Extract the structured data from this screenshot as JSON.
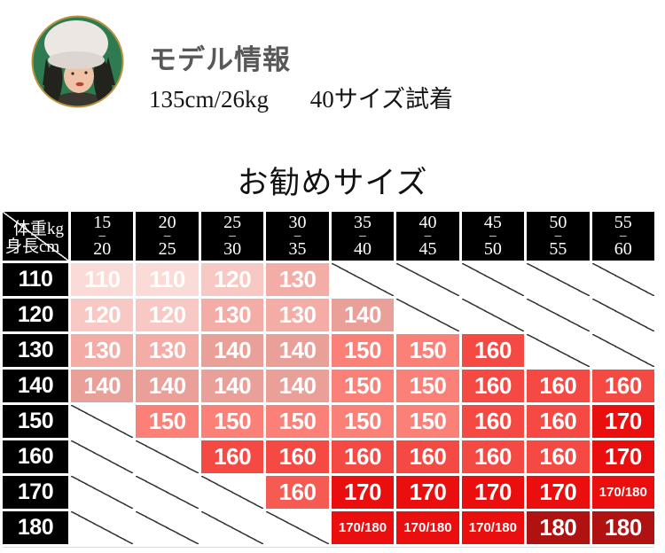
{
  "model_info": {
    "heading": "モデル情報",
    "stats": "135cm/26kg",
    "fitting": "40サイズ試着",
    "avatar_bg": "#2e7b52"
  },
  "chart_data": {
    "type": "table",
    "title": "お勧めサイズ",
    "weight_axis_label": "体重kg",
    "height_axis_label": "身長cm",
    "weight_columns": [
      {
        "from": "15",
        "to": "20"
      },
      {
        "from": "20",
        "to": "25"
      },
      {
        "from": "25",
        "to": "30"
      },
      {
        "from": "30",
        "to": "35"
      },
      {
        "from": "35",
        "to": "40"
      },
      {
        "from": "40",
        "to": "45"
      },
      {
        "from": "45",
        "to": "50"
      },
      {
        "from": "50",
        "to": "55"
      },
      {
        "from": "55",
        "to": "60"
      }
    ],
    "palette": {
      "size110": "#fbdbd7",
      "size120": "#f8c9c4",
      "size130": "#f4ada6",
      "size140": "#e9a099",
      "size150": "#fa8078",
      "size160": "#f54a43",
      "size160_alt": "#f55b53",
      "size170": "#ea0e0e",
      "size180": "#b01212",
      "header_bg": "#000000",
      "cell_text": "#ffffff",
      "empty_line": "#3b3b3b"
    },
    "rows": [
      {
        "height": "110",
        "cells": [
          {
            "label": "110",
            "color": "size110"
          },
          {
            "label": "110",
            "color": "size110"
          },
          {
            "label": "120",
            "color": "size120"
          },
          {
            "label": "130",
            "color": "size130"
          },
          null,
          null,
          null,
          null,
          null
        ]
      },
      {
        "height": "120",
        "cells": [
          {
            "label": "120",
            "color": "size120"
          },
          {
            "label": "120",
            "color": "size120"
          },
          {
            "label": "130",
            "color": "size130"
          },
          {
            "label": "130",
            "color": "size130"
          },
          {
            "label": "140",
            "color": "size140"
          },
          null,
          null,
          null,
          null
        ]
      },
      {
        "height": "130",
        "cells": [
          {
            "label": "130",
            "color": "size130"
          },
          {
            "label": "130",
            "color": "size130"
          },
          {
            "label": "140",
            "color": "size140"
          },
          {
            "label": "140",
            "color": "size140"
          },
          {
            "label": "150",
            "color": "size150"
          },
          {
            "label": "150",
            "color": "size150"
          },
          {
            "label": "160",
            "color": "size160"
          },
          null,
          null
        ]
      },
      {
        "height": "140",
        "cells": [
          {
            "label": "140",
            "color": "size140"
          },
          {
            "label": "140",
            "color": "size140"
          },
          {
            "label": "140",
            "color": "size140"
          },
          {
            "label": "140",
            "color": "size140"
          },
          {
            "label": "150",
            "color": "size150"
          },
          {
            "label": "150",
            "color": "size150"
          },
          {
            "label": "160",
            "color": "size160"
          },
          {
            "label": "160",
            "color": "size160"
          },
          {
            "label": "160",
            "color": "size160"
          }
        ]
      },
      {
        "height": "150",
        "cells": [
          null,
          {
            "label": "150",
            "color": "size150"
          },
          {
            "label": "150",
            "color": "size150"
          },
          {
            "label": "150",
            "color": "size150"
          },
          {
            "label": "150",
            "color": "size150"
          },
          {
            "label": "150",
            "color": "size150"
          },
          {
            "label": "160",
            "color": "size160"
          },
          {
            "label": "160",
            "color": "size160"
          },
          {
            "label": "170",
            "color": "size170"
          }
        ]
      },
      {
        "height": "160",
        "cells": [
          null,
          null,
          {
            "label": "160",
            "color": "size160"
          },
          {
            "label": "160",
            "color": "size160"
          },
          {
            "label": "160",
            "color": "size160"
          },
          {
            "label": "160",
            "color": "size160"
          },
          {
            "label": "160",
            "color": "size160"
          },
          {
            "label": "160",
            "color": "size160"
          },
          {
            "label": "170",
            "color": "size170"
          }
        ]
      },
      {
        "height": "170",
        "cells": [
          null,
          null,
          null,
          {
            "label": "160",
            "color": "size160_alt"
          },
          {
            "label": "170",
            "color": "size170"
          },
          {
            "label": "170",
            "color": "size170"
          },
          {
            "label": "170",
            "color": "size170"
          },
          {
            "label": "170",
            "color": "size170"
          },
          {
            "label": "170/180",
            "color": "size170"
          }
        ]
      },
      {
        "height": "180",
        "cells": [
          null,
          null,
          null,
          null,
          {
            "label": "170/180",
            "color": "size170"
          },
          {
            "label": "170/180",
            "color": "size170"
          },
          {
            "label": "170/180",
            "color": "size170"
          },
          {
            "label": "180",
            "color": "size180"
          },
          {
            "label": "180",
            "color": "size180"
          }
        ]
      }
    ]
  }
}
